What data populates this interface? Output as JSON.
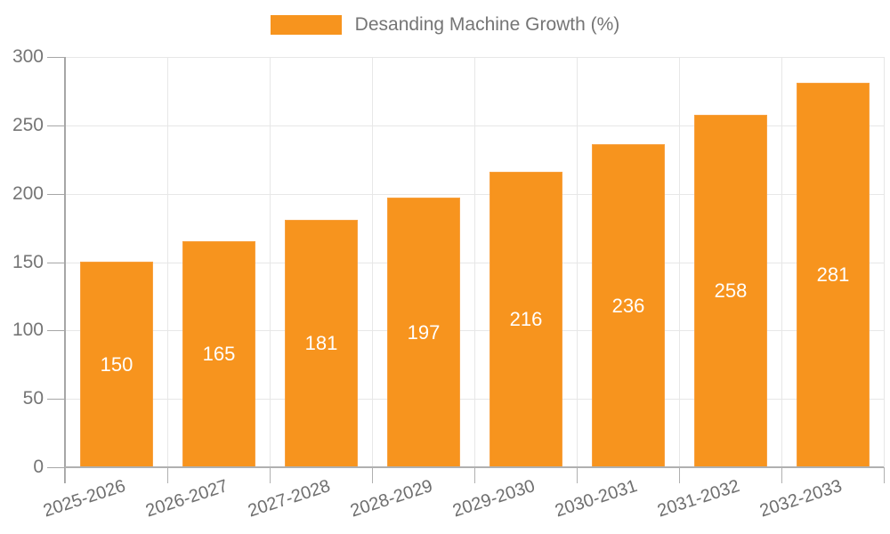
{
  "legend": {
    "label": "Desanding Machine Growth (%)"
  },
  "colors": {
    "bar": "#F7941E",
    "bar_border": "#F8A140",
    "grid": "#E7E7E7",
    "axis": "#A6A6A6",
    "axis_text": "#757575",
    "value_label": "#FFFFFF"
  },
  "chart_data": {
    "type": "bar",
    "title": "Desanding Machine Growth (%)",
    "categories": [
      "2025-2026",
      "2026-2027",
      "2027-2028",
      "2028-2029",
      "2029-2030",
      "2030-2031",
      "2031-2032",
      "2032-2033"
    ],
    "values": [
      150,
      165,
      181,
      197,
      216,
      236,
      258,
      281
    ],
    "xlabel": "",
    "ylabel": "",
    "ylim": [
      0,
      300
    ],
    "ytick_step": 50,
    "ytick_labels": [
      "0",
      "50",
      "100",
      "150",
      "200",
      "250",
      "300"
    ],
    "grid": true,
    "legend_position": "top-center",
    "value_labels": "inside-center",
    "xtick_rotation_deg": -18
  }
}
